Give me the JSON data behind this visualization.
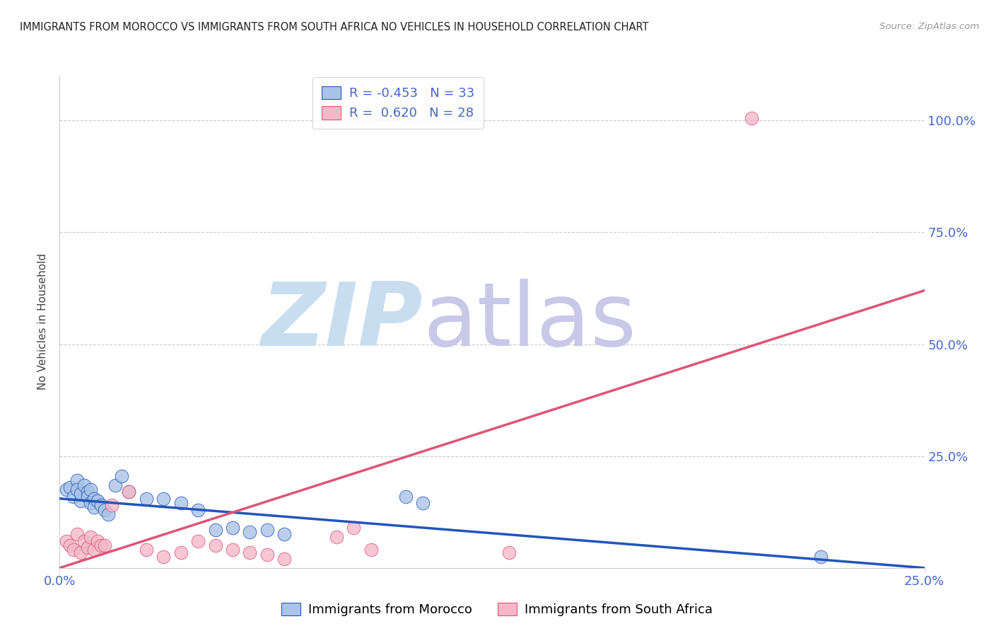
{
  "title": "IMMIGRANTS FROM MOROCCO VS IMMIGRANTS FROM SOUTH AFRICA NO VEHICLES IN HOUSEHOLD CORRELATION CHART",
  "source": "Source: ZipAtlas.com",
  "ylabel": "No Vehicles in Household",
  "x_range": [
    0.0,
    0.25
  ],
  "y_range": [
    0.0,
    1.1
  ],
  "legend_morocco": {
    "label": "Immigrants from Morocco",
    "R": "-0.453",
    "N": "33",
    "color": "#aac4e8"
  },
  "legend_sa": {
    "label": "Immigrants from South Africa",
    "R": "0.620",
    "N": "28",
    "color": "#f4b8c8"
  },
  "morocco_scatter": [
    [
      0.002,
      0.175
    ],
    [
      0.003,
      0.18
    ],
    [
      0.004,
      0.16
    ],
    [
      0.005,
      0.195
    ],
    [
      0.005,
      0.175
    ],
    [
      0.006,
      0.15
    ],
    [
      0.006,
      0.165
    ],
    [
      0.007,
      0.185
    ],
    [
      0.008,
      0.17
    ],
    [
      0.008,
      0.16
    ],
    [
      0.009,
      0.175
    ],
    [
      0.009,
      0.145
    ],
    [
      0.01,
      0.155
    ],
    [
      0.01,
      0.135
    ],
    [
      0.011,
      0.15
    ],
    [
      0.012,
      0.14
    ],
    [
      0.013,
      0.13
    ],
    [
      0.014,
      0.12
    ],
    [
      0.016,
      0.185
    ],
    [
      0.018,
      0.205
    ],
    [
      0.02,
      0.17
    ],
    [
      0.025,
      0.155
    ],
    [
      0.03,
      0.155
    ],
    [
      0.035,
      0.145
    ],
    [
      0.04,
      0.13
    ],
    [
      0.045,
      0.085
    ],
    [
      0.05,
      0.09
    ],
    [
      0.055,
      0.08
    ],
    [
      0.06,
      0.085
    ],
    [
      0.065,
      0.075
    ],
    [
      0.1,
      0.16
    ],
    [
      0.105,
      0.145
    ],
    [
      0.22,
      0.025
    ]
  ],
  "sa_scatter": [
    [
      0.002,
      0.06
    ],
    [
      0.003,
      0.05
    ],
    [
      0.004,
      0.04
    ],
    [
      0.005,
      0.075
    ],
    [
      0.006,
      0.035
    ],
    [
      0.007,
      0.06
    ],
    [
      0.008,
      0.045
    ],
    [
      0.009,
      0.07
    ],
    [
      0.01,
      0.04
    ],
    [
      0.011,
      0.06
    ],
    [
      0.012,
      0.05
    ],
    [
      0.013,
      0.05
    ],
    [
      0.015,
      0.14
    ],
    [
      0.02,
      0.17
    ],
    [
      0.025,
      0.04
    ],
    [
      0.03,
      0.025
    ],
    [
      0.035,
      0.035
    ],
    [
      0.04,
      0.06
    ],
    [
      0.045,
      0.05
    ],
    [
      0.05,
      0.04
    ],
    [
      0.055,
      0.035
    ],
    [
      0.06,
      0.03
    ],
    [
      0.065,
      0.02
    ],
    [
      0.08,
      0.07
    ],
    [
      0.085,
      0.09
    ],
    [
      0.09,
      0.04
    ],
    [
      0.13,
      0.035
    ],
    [
      0.2,
      1.005
    ]
  ],
  "morocco_line": {
    "x": [
      0.0,
      0.25
    ],
    "y": [
      0.155,
      0.0
    ]
  },
  "sa_line": {
    "x": [
      0.0,
      0.25
    ],
    "y": [
      0.0,
      0.62
    ]
  },
  "background_color": "#ffffff",
  "scatter_color_morocco": "#aac4e8",
  "scatter_color_sa": "#f4b8c8",
  "line_color_morocco": "#2255bb",
  "line_color_sa": "#dd5577",
  "watermark_zip": "ZIP",
  "watermark_atlas": "atlas",
  "watermark_color_zip": "#c8ddf0",
  "watermark_color_atlas": "#c8c8e8",
  "grid_color": "#cccccc",
  "tick_color": "#4466cc"
}
